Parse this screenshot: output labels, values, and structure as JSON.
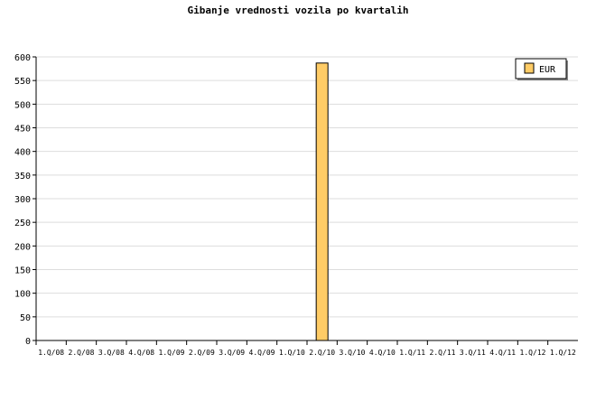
{
  "chart_data": {
    "type": "bar",
    "title": "Gibanje vrednosti vozila po kvartalih",
    "categories": [
      "1.Q/08",
      "2.Q/08",
      "3.Q/08",
      "4.Q/08",
      "1.Q/09",
      "2.Q/09",
      "3.Q/09",
      "4.Q/09",
      "1.Q/10",
      "2.Q/10",
      "3.Q/10",
      "4.Q/10",
      "1.Q/11",
      "2.Q/11",
      "3.Q/11",
      "4.Q/11",
      "1.Q/12",
      "1.Q/12"
    ],
    "series": [
      {
        "name": "EUR",
        "values": [
          0,
          0,
          0,
          0,
          0,
          0,
          0,
          0,
          0,
          587,
          0,
          0,
          0,
          0,
          0,
          0,
          0,
          0
        ],
        "color": "#ffcc66"
      }
    ],
    "ylim": [
      0,
      600
    ],
    "yticks": [
      0,
      50,
      100,
      150,
      200,
      250,
      300,
      350,
      400,
      450,
      500,
      550,
      600
    ],
    "grid": true,
    "legend": "top-right",
    "xlabel": "",
    "ylabel": ""
  }
}
